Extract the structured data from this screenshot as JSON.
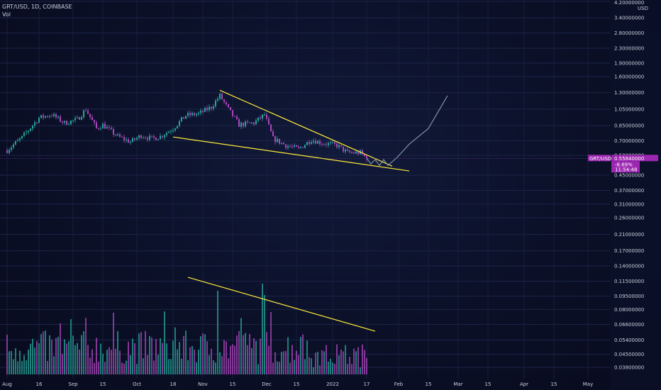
{
  "header": {
    "symbol": "GRT/USD, 1D, COINBASE",
    "vol_label": "Vol"
  },
  "price_axis": {
    "currency": "USD",
    "top_value": "4.20000000"
  },
  "price_tag": {
    "symbol": "GRT/USD",
    "price": "0.55840000",
    "change": "-8.69%",
    "countdown": "11:54:48",
    "color": "#9c27b0"
  },
  "colors": {
    "background": "#0b1028",
    "bull": "#26a69a",
    "bear": "#ab47bc",
    "trendline": "#ffeb3b",
    "projection": "#7f93a6"
  },
  "chart_data": {
    "type": "candlestick",
    "title": "GRT/USD, 1D, COINBASE",
    "y_scale": "log",
    "ylim": [
      0.036,
      4.2
    ],
    "y_ticks": [
      "4.20000000",
      "3.40000000",
      "2.80000000",
      "2.30000000",
      "1.90000000",
      "1.60000000",
      "1.30000000",
      "1.05000000",
      "0.85000000",
      "0.70000000",
      "0.58000000",
      "0.45000000",
      "0.37000000",
      "0.31000000",
      "0.26000000",
      "0.21000000",
      "0.17000000",
      "0.14000000",
      "0.11500000",
      "0.09500000",
      "0.08000000",
      "0.06600000",
      "0.05400000",
      "0.04500000",
      "0.03800000"
    ],
    "x_ticks": [
      "Aug",
      "16",
      "Sep",
      "15",
      "Oct",
      "18",
      "Nov",
      "15",
      "Dec",
      "15",
      "2022",
      "17",
      "Feb",
      "15",
      "Mar",
      "15",
      "Apr",
      "15",
      "May"
    ],
    "price_anchors": [
      {
        "date": "Aug 1",
        "value": 0.62
      },
      {
        "date": "Aug 8",
        "value": 0.73
      },
      {
        "date": "Aug 16",
        "value": 0.94
      },
      {
        "date": "Aug 22",
        "value": 0.98
      },
      {
        "date": "Aug 28",
        "value": 0.88
      },
      {
        "date": "Sep 3",
        "value": 0.92
      },
      {
        "date": "Sep 7",
        "value": 1.05
      },
      {
        "date": "Sep 12",
        "value": 0.82
      },
      {
        "date": "Sep 15",
        "value": 0.86
      },
      {
        "date": "Sep 22",
        "value": 0.74
      },
      {
        "date": "Sep 28",
        "value": 0.69
      },
      {
        "date": "Oct 3",
        "value": 0.75
      },
      {
        "date": "Oct 8",
        "value": 0.72
      },
      {
        "date": "Oct 12",
        "value": 0.74
      },
      {
        "date": "Oct 18",
        "value": 0.82
      },
      {
        "date": "Oct 24",
        "value": 0.97
      },
      {
        "date": "Oct 30",
        "value": 0.99
      },
      {
        "date": "Nov 5",
        "value": 1.08
      },
      {
        "date": "Nov 9",
        "value": 1.25
      },
      {
        "date": "Nov 13",
        "value": 1.05
      },
      {
        "date": "Nov 18",
        "value": 0.86
      },
      {
        "date": "Nov 25",
        "value": 0.88
      },
      {
        "date": "Nov 30",
        "value": 0.98
      },
      {
        "date": "Dec 4",
        "value": 0.72
      },
      {
        "date": "Dec 10",
        "value": 0.66
      },
      {
        "date": "Dec 16",
        "value": 0.63
      },
      {
        "date": "Dec 22",
        "value": 0.71
      },
      {
        "date": "Dec 27",
        "value": 0.68
      },
      {
        "date": "Jan 3",
        "value": 0.66
      },
      {
        "date": "Jan 8",
        "value": 0.6
      },
      {
        "date": "Jan 14",
        "value": 0.6
      },
      {
        "date": "Jan 17",
        "value": 0.5584
      }
    ],
    "volume_note": "daily volume bars, colored by candle direction",
    "trendlines": [
      {
        "name": "upper-wedge",
        "from": {
          "date": "Nov 9",
          "value": 1.34
        },
        "to": {
          "date": "Jan 29",
          "value": 0.505
        }
      },
      {
        "name": "lower-wedge",
        "from": {
          "date": "Oct 18",
          "value": 0.735
        },
        "to": {
          "date": "Feb 6",
          "value": 0.475
        }
      },
      {
        "name": "volume-trend",
        "from": {
          "date": "Oct 25",
          "value": 0.121
        },
        "to": {
          "date": "Jan 21",
          "value": 0.0605
        }
      }
    ],
    "projection": [
      {
        "date": "Jan 17",
        "value": 0.56
      },
      {
        "date": "Jan 19",
        "value": 0.52
      },
      {
        "date": "Jan 21",
        "value": 0.55
      },
      {
        "date": "Jan 23",
        "value": 0.51
      },
      {
        "date": "Jan 25",
        "value": 0.55
      },
      {
        "date": "Jan 27",
        "value": 0.51
      },
      {
        "date": "Jan 31",
        "value": 0.56
      },
      {
        "date": "Feb 6",
        "value": 0.67
      },
      {
        "date": "Feb 15",
        "value": 0.82
      },
      {
        "date": "Feb 24",
        "value": 1.25
      }
    ]
  }
}
